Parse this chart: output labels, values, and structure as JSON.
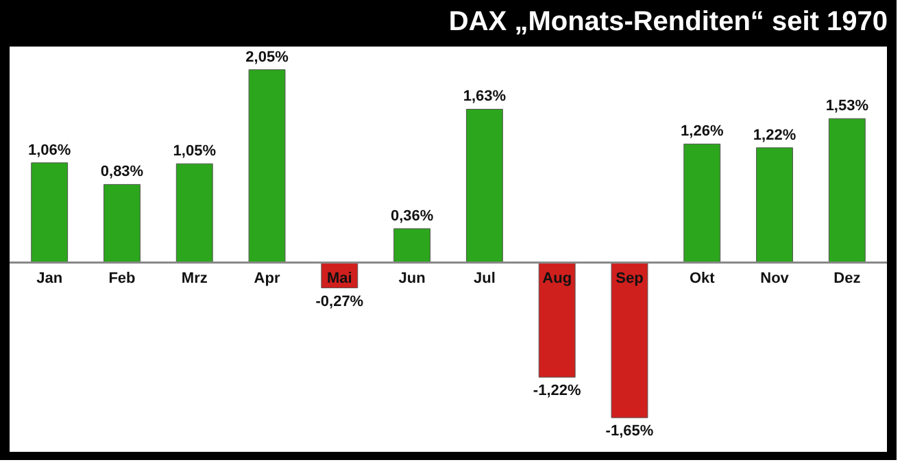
{
  "chart_data": {
    "type": "bar",
    "title": "DAX „Monats-Renditen“ seit 1970",
    "categories": [
      "Jan",
      "Feb",
      "Mrz",
      "Apr",
      "Mai",
      "Jun",
      "Jul",
      "Aug",
      "Sep",
      "Okt",
      "Nov",
      "Dez"
    ],
    "values": [
      1.06,
      0.83,
      1.05,
      2.05,
      -0.27,
      0.36,
      1.63,
      -1.22,
      -1.65,
      1.26,
      1.22,
      1.53
    ],
    "colors": [
      "#2ca61c",
      "#2ca61c",
      "#2ca61c",
      "#2ca61c",
      "#d0201e",
      "#2ca61c",
      "#2ca61c",
      "#d0201e",
      "#d0201e",
      "#2ca61c",
      "#2ca61c",
      "#2ca61c"
    ],
    "value_labels": [
      "1,06%",
      "0,83%",
      "1,05%",
      "2,05%",
      "-0,27%",
      "0,36%",
      "1,63%",
      "-1,22%",
      "-1,65%",
      "1,26%",
      "1,22%",
      "1,53%"
    ]
  }
}
